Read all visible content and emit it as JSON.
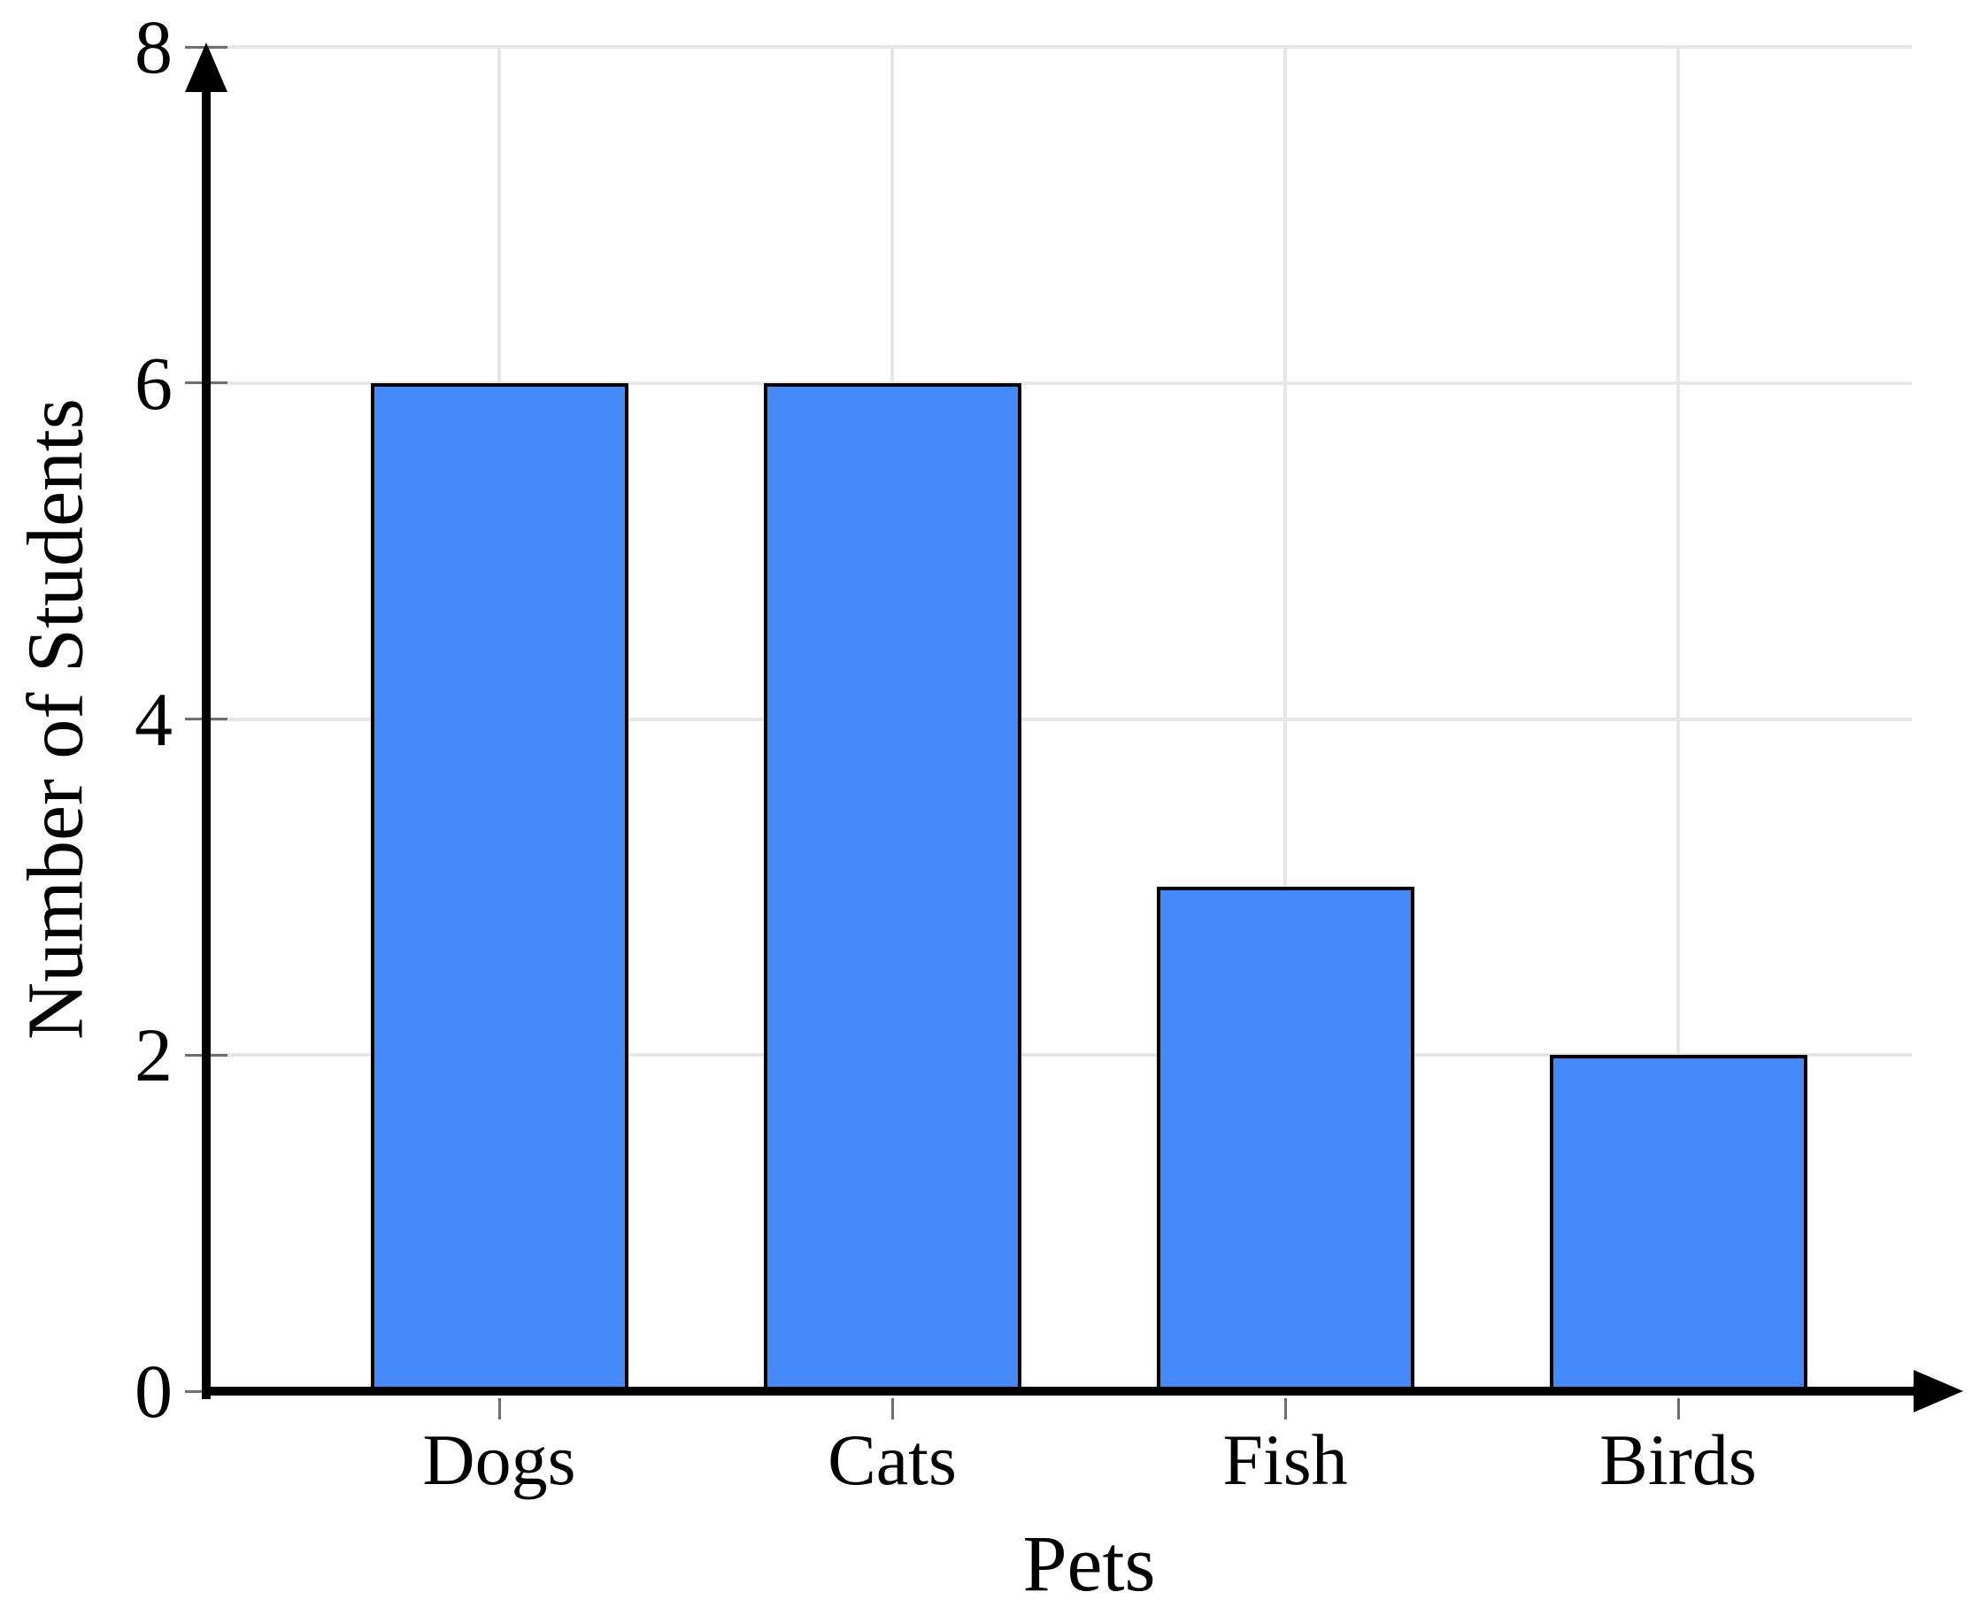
{
  "chart_data": {
    "type": "bar",
    "title": "",
    "categories": [
      "Dogs",
      "Cats",
      "Fish",
      "Birds"
    ],
    "values": [
      6,
      6,
      3,
      2
    ],
    "xlabel": "Pets",
    "ylabel": "Number of Students",
    "ylim": [
      0,
      8
    ],
    "yticks": [
      0,
      2,
      4,
      6,
      8
    ],
    "grid": "both",
    "legend_position": "none",
    "bar_fill_color": "#4589F8",
    "bar_stroke_color": "#000000",
    "grid_color": "#E6E6E6",
    "axis_color": "#000000",
    "tick_color": "#6E6E6E",
    "text_color": "#000000"
  }
}
